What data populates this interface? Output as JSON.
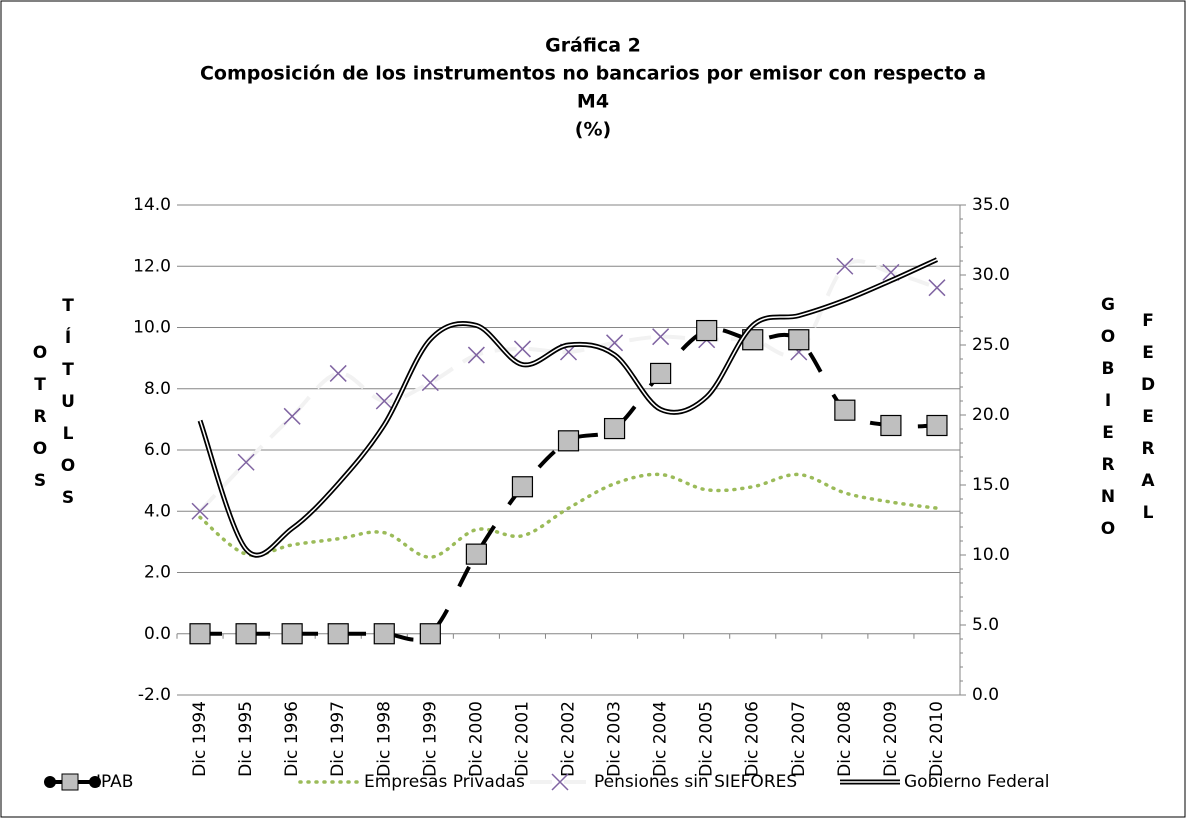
{
  "chart_data": {
    "type": "line",
    "title": [
      "Gráfica 2",
      "Composición de los instrumentos no bancarios por emisor  con respecto a",
      "M4",
      "(%)"
    ],
    "y_label": [
      "OTROS",
      "TÍTULOS"
    ],
    "y2_label": [
      "GOBIERNO",
      "FEDERAL"
    ],
    "categories": [
      "Dic 1994",
      "Dic 1995",
      "Dic 1996",
      "Dic 1997",
      "Dic 1998",
      "Dic 1999",
      "Dic 2000",
      "Dic 2001",
      "Dic 2002",
      "Dic 2003",
      "Dic 2004",
      "Dic 2005",
      "Dic 2006",
      "Dic 2007",
      "Dic 2008",
      "Dic 2009",
      "Dic 2010"
    ],
    "ylim": [
      -2,
      14
    ],
    "yticks": [
      {
        "value": -2,
        "label": "-2.0"
      },
      {
        "value": 0,
        "label": "0.0"
      },
      {
        "value": 2,
        "label": "2.0"
      },
      {
        "value": 4,
        "label": "4.0"
      },
      {
        "value": 6,
        "label": "6.0"
      },
      {
        "value": 8,
        "label": "8.0"
      },
      {
        "value": 10,
        "label": "10.0"
      },
      {
        "value": 12,
        "label": "12.0"
      },
      {
        "value": 14,
        "label": "14.0"
      }
    ],
    "y2lim": [
      0,
      35
    ],
    "y2ticks": [
      {
        "value": 0,
        "label": "0.0"
      },
      {
        "value": 5,
        "label": "5.0"
      },
      {
        "value": 10,
        "label": "10.0"
      },
      {
        "value": 15,
        "label": "15.0"
      },
      {
        "value": 20,
        "label": "20.0"
      },
      {
        "value": 25,
        "label": "25.0"
      },
      {
        "value": 30,
        "label": "30.0"
      },
      {
        "value": 35,
        "label": "35.0"
      }
    ],
    "grid": true,
    "legend": "bottom",
    "series": [
      {
        "name": "IPAB",
        "color": "#000000",
        "marker_color": "#bfbfbf",
        "style": "dashed-square",
        "values": [
          0,
          0,
          0,
          0,
          0,
          0,
          2.6,
          4.8,
          6.3,
          6.7,
          8.5,
          9.9,
          9.6,
          9.6,
          7.3,
          6.8,
          6.8
        ]
      },
      {
        "name": "Empresas Privadas",
        "color": "#9bbb59",
        "style": "dotted",
        "values": [
          3.8,
          2.6,
          2.9,
          3.1,
          3.3,
          2.5,
          3.4,
          3.2,
          4.1,
          4.9,
          5.2,
          4.7,
          4.8,
          5.2,
          4.6,
          4.3,
          4.1
        ]
      },
      {
        "name": "Pensiones sin SIEFORES",
        "color": "#f2f2f2",
        "marker_color": "#8064a2",
        "style": "dashed-x",
        "values": [
          4.0,
          5.6,
          7.1,
          8.5,
          7.6,
          8.2,
          9.1,
          9.3,
          9.2,
          9.5,
          9.7,
          9.6,
          9.6,
          9.2,
          12.0,
          11.8,
          11.3
        ]
      },
      {
        "name": "Gobierno Federal",
        "color": "#000000",
        "style": "double",
        "axis": "y2",
        "values": [
          19.6,
          10.4,
          11.9,
          15.1,
          19.3,
          25.4,
          26.4,
          23.6,
          25.0,
          24.3,
          20.4,
          21.3,
          26.4,
          27.1,
          28.2,
          29.6,
          31.1
        ]
      }
    ]
  }
}
